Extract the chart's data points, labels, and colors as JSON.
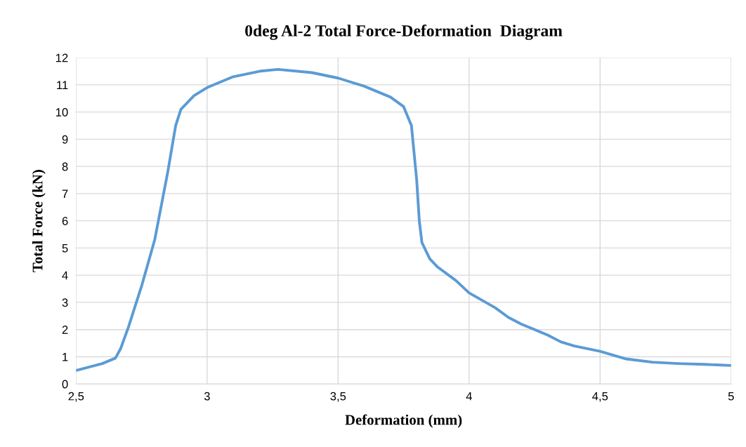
{
  "chart_data": {
    "type": "line",
    "title": "0deg Al-2 Total Force-Deformation  Diagram",
    "xlabel": "Deformation (mm)",
    "ylabel": "Total Force (kN)",
    "x": [
      2.5,
      2.6,
      2.65,
      2.67,
      2.7,
      2.75,
      2.8,
      2.85,
      2.88,
      2.9,
      2.95,
      3.0,
      3.1,
      3.2,
      3.27,
      3.4,
      3.5,
      3.6,
      3.7,
      3.75,
      3.78,
      3.8,
      3.81,
      3.82,
      3.85,
      3.88,
      3.95,
      4.0,
      4.1,
      4.15,
      4.2,
      4.3,
      4.35,
      4.4,
      4.5,
      4.6,
      4.7,
      4.8,
      4.9,
      5.0
    ],
    "series": [
      {
        "color": "#5b9bd5",
        "values": [
          0.5,
          0.75,
          0.95,
          1.3,
          2.1,
          3.6,
          5.3,
          7.8,
          9.5,
          10.1,
          10.6,
          10.9,
          11.3,
          11.5,
          11.57,
          11.45,
          11.25,
          10.95,
          10.55,
          10.2,
          9.5,
          7.5,
          6.0,
          5.2,
          4.6,
          4.3,
          3.8,
          3.35,
          2.8,
          2.45,
          2.2,
          1.8,
          1.55,
          1.4,
          1.2,
          0.92,
          0.8,
          0.75,
          0.72,
          0.68
        ]
      }
    ],
    "xlim": [
      2.5,
      5
    ],
    "xticks": [
      {
        "value": 2.5,
        "label": "2,5"
      },
      3,
      {
        "value": 3.5,
        "label": "3,5"
      },
      4,
      {
        "value": 4.5,
        "label": "4,5"
      },
      5
    ],
    "ylim": [
      0,
      12
    ],
    "yticks": [
      0,
      1,
      2,
      3,
      4,
      5,
      6,
      7,
      8,
      9,
      10,
      11,
      12
    ],
    "grid": true,
    "marker": "none",
    "line_style": "solid"
  }
}
